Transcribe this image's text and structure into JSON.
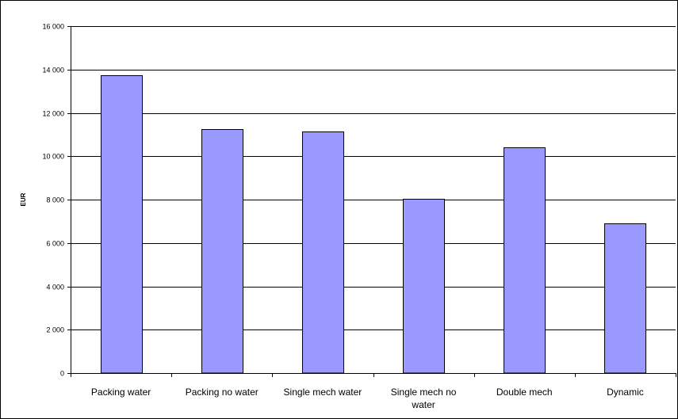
{
  "chart_data": {
    "type": "bar",
    "title": "",
    "xlabel": "",
    "ylabel": "EUR",
    "ylim": [
      0,
      16000
    ],
    "yticks": [
      0,
      2000,
      4000,
      6000,
      8000,
      10000,
      12000,
      14000,
      16000
    ],
    "ytick_labels": [
      "0",
      "2 000",
      "4 000",
      "6 000",
      "8 000",
      "10 000",
      "12 000",
      "14 000",
      "16 000"
    ],
    "categories": [
      [
        "Packing water"
      ],
      [
        "Packing no water"
      ],
      [
        "Single mech water"
      ],
      [
        "Single mech no",
        "water"
      ],
      [
        "Double mech"
      ],
      [
        "Dynamic"
      ]
    ],
    "values": [
      13750,
      11250,
      11130,
      8050,
      10400,
      6900
    ],
    "grid": true,
    "legend": "none",
    "colors": {
      "bar_fill": "#9999ff",
      "bar_stroke": "#000000",
      "grid": "#000000",
      "background": "#ffffff"
    }
  }
}
